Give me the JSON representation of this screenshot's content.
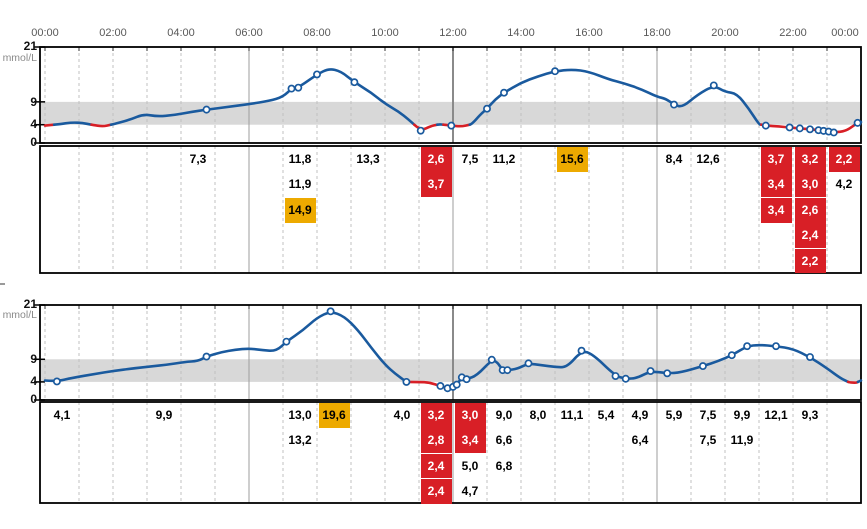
{
  "y_axis": {
    "unit": "mmol/L",
    "ticks": [
      "21",
      "9",
      "4",
      "0"
    ]
  },
  "time_axis": {
    "labels": [
      "00:00",
      "02:00",
      "04:00",
      "06:00",
      "08:00",
      "10:00",
      "12:00",
      "14:00",
      "16:00",
      "18:00",
      "20:00",
      "22:00",
      "00:00"
    ]
  },
  "target_range": {
    "low": 4,
    "high": 9
  },
  "colors": {
    "line_blue": "#1a5a9e",
    "line_red": "#d81f26",
    "cell_low_red": "#d81f26",
    "cell_high_orange": "#edaa00",
    "target_band_gray": "#d8d8d8",
    "grid_dashed": "#c0c0c0",
    "grid_solid": "#9e9e9e",
    "noon_line": "#8a8a8a",
    "axis_black": "#000000",
    "time_label_gray": "#595959"
  },
  "chart_data": [
    {
      "type": "line",
      "name": "day-1-glucose",
      "ylabel": "mmol/L",
      "ylim": [
        0,
        21
      ],
      "x_range_hours": [
        0,
        24
      ],
      "low_threshold": 4,
      "series": [
        {
          "name": "sensor-glucose",
          "points": [
            [
              0,
              3.8
            ],
            [
              0.4,
              4.1
            ],
            [
              0.8,
              4.5
            ],
            [
              1.1,
              4.4
            ],
            [
              1.4,
              3.95
            ],
            [
              1.7,
              3.6
            ],
            [
              2.0,
              4.1
            ],
            [
              2.5,
              5.1
            ],
            [
              2.9,
              6.3
            ],
            [
              3.3,
              5.8
            ],
            [
              3.8,
              6.1
            ],
            [
              4.3,
              6.8
            ],
            [
              4.75,
              7.3,
              1
            ],
            [
              5.3,
              7.8
            ],
            [
              6.0,
              8.5
            ],
            [
              6.6,
              9.2
            ],
            [
              7.0,
              10.1
            ],
            [
              7.25,
              11.9,
              1
            ],
            [
              7.45,
              12.1,
              1
            ],
            [
              8.0,
              15.0,
              1
            ],
            [
              8.35,
              16.3
            ],
            [
              8.7,
              15.7
            ],
            [
              9.1,
              13.3,
              1
            ],
            [
              9.6,
              11.0
            ],
            [
              10.0,
              8.6
            ],
            [
              10.4,
              6.9
            ],
            [
              10.7,
              5.1
            ],
            [
              11.05,
              2.7,
              1
            ],
            [
              11.35,
              3.7
            ],
            [
              11.6,
              4.1
            ],
            [
              11.95,
              3.8,
              1
            ],
            [
              12.25,
              3.6
            ],
            [
              12.55,
              4.1
            ],
            [
              12.8,
              6.2
            ],
            [
              13.0,
              7.5,
              1
            ],
            [
              13.25,
              9.6
            ],
            [
              13.5,
              11.0,
              1
            ],
            [
              14.0,
              13.2
            ],
            [
              14.5,
              14.6
            ],
            [
              15.0,
              15.7,
              1
            ],
            [
              15.5,
              16.1
            ],
            [
              16.0,
              15.6
            ],
            [
              16.6,
              13.9
            ],
            [
              17.0,
              13.1
            ],
            [
              17.5,
              11.9
            ],
            [
              18.0,
              10.1
            ],
            [
              18.25,
              9.7
            ],
            [
              18.5,
              8.4,
              1
            ],
            [
              18.75,
              7.8
            ],
            [
              19.2,
              10.6
            ],
            [
              19.67,
              12.6,
              1
            ],
            [
              20.0,
              11.2
            ],
            [
              20.35,
              10.8
            ],
            [
              20.7,
              7.5
            ],
            [
              21.0,
              4.1
            ],
            [
              21.2,
              3.8,
              1
            ],
            [
              21.6,
              3.6
            ],
            [
              21.9,
              3.4,
              1
            ],
            [
              22.2,
              3.2,
              1
            ],
            [
              22.5,
              3.0,
              1
            ],
            [
              22.75,
              2.8,
              1
            ],
            [
              22.9,
              2.65,
              1
            ],
            [
              23.05,
              2.5,
              1
            ],
            [
              23.2,
              2.3,
              1
            ],
            [
              23.55,
              2.6
            ],
            [
              23.9,
              4.4,
              1
            ],
            [
              24,
              4.6
            ]
          ]
        }
      ],
      "table": {
        "rows": 5,
        "cells": [
          [
            4,
            0,
            "7,3",
            "none"
          ],
          [
            7,
            0,
            "11,8",
            "none"
          ],
          [
            7,
            1,
            "11,9",
            "none"
          ],
          [
            7,
            2,
            "14,9",
            "high"
          ],
          [
            9,
            0,
            "13,3",
            "none"
          ],
          [
            11,
            0,
            "2,6",
            "low"
          ],
          [
            11,
            1,
            "3,7",
            "low"
          ],
          [
            12,
            0,
            "7,5",
            "none"
          ],
          [
            13,
            0,
            "11,2",
            "none"
          ],
          [
            15,
            0,
            "15,6",
            "high"
          ],
          [
            18,
            0,
            "8,4",
            "none"
          ],
          [
            19,
            0,
            "12,6",
            "none"
          ],
          [
            21,
            0,
            "3,7",
            "low"
          ],
          [
            21,
            1,
            "3,4",
            "low"
          ],
          [
            21,
            2,
            "3,4",
            "low"
          ],
          [
            22,
            0,
            "3,2",
            "low"
          ],
          [
            22,
            1,
            "3,0",
            "low"
          ],
          [
            22,
            2,
            "2,6",
            "low"
          ],
          [
            22,
            3,
            "2,4",
            "low"
          ],
          [
            22,
            4,
            "2,2",
            "low"
          ],
          [
            23,
            0,
            "2,2",
            "low"
          ],
          [
            23,
            1,
            "4,2",
            "none"
          ]
        ]
      }
    },
    {
      "type": "line",
      "name": "day-2-glucose",
      "ylabel": "mmol/L",
      "ylim": [
        0,
        21
      ],
      "x_range_hours": [
        0,
        24
      ],
      "low_threshold": 4,
      "series": [
        {
          "name": "sensor-glucose",
          "points": [
            [
              0,
              4.3
            ],
            [
              0.35,
              4.1,
              1
            ],
            [
              0.8,
              4.9
            ],
            [
              1.5,
              5.8
            ],
            [
              2.0,
              6.4
            ],
            [
              2.6,
              7.0
            ],
            [
              3.1,
              7.4
            ],
            [
              3.6,
              7.8
            ],
            [
              4.1,
              8.4
            ],
            [
              4.5,
              8.6
            ],
            [
              4.75,
              9.6,
              1
            ],
            [
              5.2,
              10.6
            ],
            [
              5.6,
              11.1
            ],
            [
              6.0,
              11.4
            ],
            [
              6.4,
              11.0
            ],
            [
              6.8,
              10.8
            ],
            [
              7.1,
              12.9,
              1
            ],
            [
              7.6,
              15.5
            ],
            [
              8.0,
              18.2
            ],
            [
              8.4,
              19.6,
              1
            ],
            [
              8.8,
              18.5
            ],
            [
              9.2,
              15.5
            ],
            [
              9.6,
              11.5
            ],
            [
              10.0,
              7.8
            ],
            [
              10.3,
              5.8
            ],
            [
              10.63,
              4.0,
              1
            ],
            [
              11.0,
              3.95
            ],
            [
              11.3,
              3.9
            ],
            [
              11.63,
              3.1,
              1
            ],
            [
              11.84,
              2.6,
              1
            ],
            [
              12.0,
              2.9,
              1
            ],
            [
              12.11,
              3.4,
              1
            ],
            [
              12.26,
              5.0,
              1
            ],
            [
              12.4,
              4.6,
              1
            ],
            [
              12.7,
              5.4
            ],
            [
              13.14,
              8.9,
              1
            ],
            [
              13.3,
              8.4
            ],
            [
              13.46,
              6.6,
              1
            ],
            [
              13.6,
              6.6,
              1
            ],
            [
              13.9,
              6.9
            ],
            [
              14.22,
              8.1,
              1
            ],
            [
              14.6,
              7.7
            ],
            [
              15.0,
              7.3
            ],
            [
              15.35,
              7.2
            ],
            [
              15.78,
              10.9,
              1
            ],
            [
              16.1,
              10.2
            ],
            [
              16.78,
              5.3,
              1
            ],
            [
              17.08,
              4.7,
              1
            ],
            [
              17.4,
              4.8
            ],
            [
              17.81,
              6.4,
              1
            ],
            [
              18.3,
              5.9,
              1
            ],
            [
              18.7,
              6.1
            ],
            [
              19.35,
              7.5,
              1
            ],
            [
              19.8,
              8.6
            ],
            [
              20.2,
              9.9,
              1
            ],
            [
              20.65,
              11.9,
              1
            ],
            [
              21.0,
              12.2
            ],
            [
              21.5,
              11.9,
              1
            ],
            [
              22.0,
              11.3
            ],
            [
              22.5,
              9.5,
              1
            ],
            [
              23.0,
              7.0
            ],
            [
              23.4,
              4.8
            ],
            [
              23.65,
              3.9
            ],
            [
              23.85,
              3.8
            ],
            [
              24,
              4.3
            ]
          ]
        }
      ],
      "table": {
        "rows": 4,
        "cells": [
          [
            0,
            0,
            "4,1",
            "none"
          ],
          [
            3,
            0,
            "9,9",
            "none"
          ],
          [
            7,
            0,
            "13,0",
            "none"
          ],
          [
            7,
            1,
            "13,2",
            "none"
          ],
          [
            8,
            0,
            "19,6",
            "high"
          ],
          [
            10,
            0,
            "4,0",
            "none"
          ],
          [
            11,
            0,
            "3,2",
            "low"
          ],
          [
            11,
            1,
            "2,8",
            "low"
          ],
          [
            11,
            2,
            "2,4",
            "low"
          ],
          [
            11,
            3,
            "2,4",
            "low"
          ],
          [
            12,
            0,
            "3,0",
            "low"
          ],
          [
            12,
            1,
            "3,4",
            "low"
          ],
          [
            12,
            2,
            "5,0",
            "none"
          ],
          [
            12,
            3,
            "4,7",
            "none"
          ],
          [
            13,
            0,
            "9,0",
            "none"
          ],
          [
            13,
            1,
            "6,6",
            "none"
          ],
          [
            13,
            2,
            "6,8",
            "none"
          ],
          [
            14,
            0,
            "8,0",
            "none"
          ],
          [
            15,
            0,
            "11,1",
            "none"
          ],
          [
            16,
            0,
            "5,4",
            "none"
          ],
          [
            17,
            0,
            "4,9",
            "none"
          ],
          [
            17,
            1,
            "6,4",
            "none"
          ],
          [
            18,
            0,
            "5,9",
            "none"
          ],
          [
            19,
            0,
            "7,5",
            "none"
          ],
          [
            19,
            1,
            "7,5",
            "none"
          ],
          [
            20,
            0,
            "9,9",
            "none"
          ],
          [
            20,
            1,
            "11,9",
            "none"
          ],
          [
            21,
            0,
            "12,1",
            "none"
          ],
          [
            22,
            0,
            "9,3",
            "none"
          ]
        ]
      }
    }
  ]
}
